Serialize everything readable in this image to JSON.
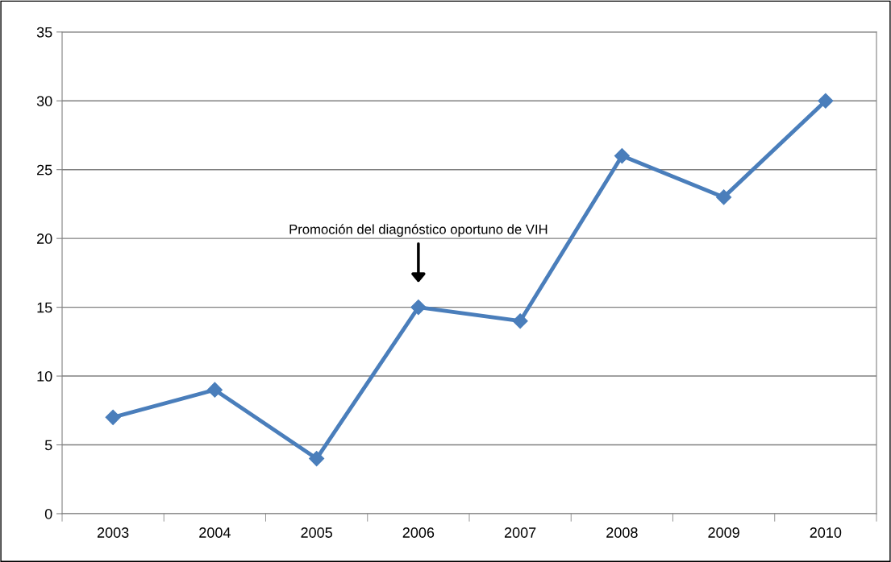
{
  "chart_data": {
    "type": "line",
    "categories": [
      "2003",
      "2004",
      "2005",
      "2006",
      "2007",
      "2008",
      "2009",
      "2010"
    ],
    "series": [
      {
        "color": "#4a7ebb",
        "values": [
          7,
          9,
          4,
          15,
          14,
          26,
          23,
          30
        ]
      }
    ],
    "ylim": [
      0,
      35
    ],
    "yticks": [
      0,
      5,
      10,
      15,
      20,
      25,
      30,
      35
    ],
    "grid": "y",
    "marker": "diamond",
    "line_style": "solid",
    "legend": false,
    "annotations": [
      "Promoción del diagnóstico oportuno de VIH"
    ]
  }
}
